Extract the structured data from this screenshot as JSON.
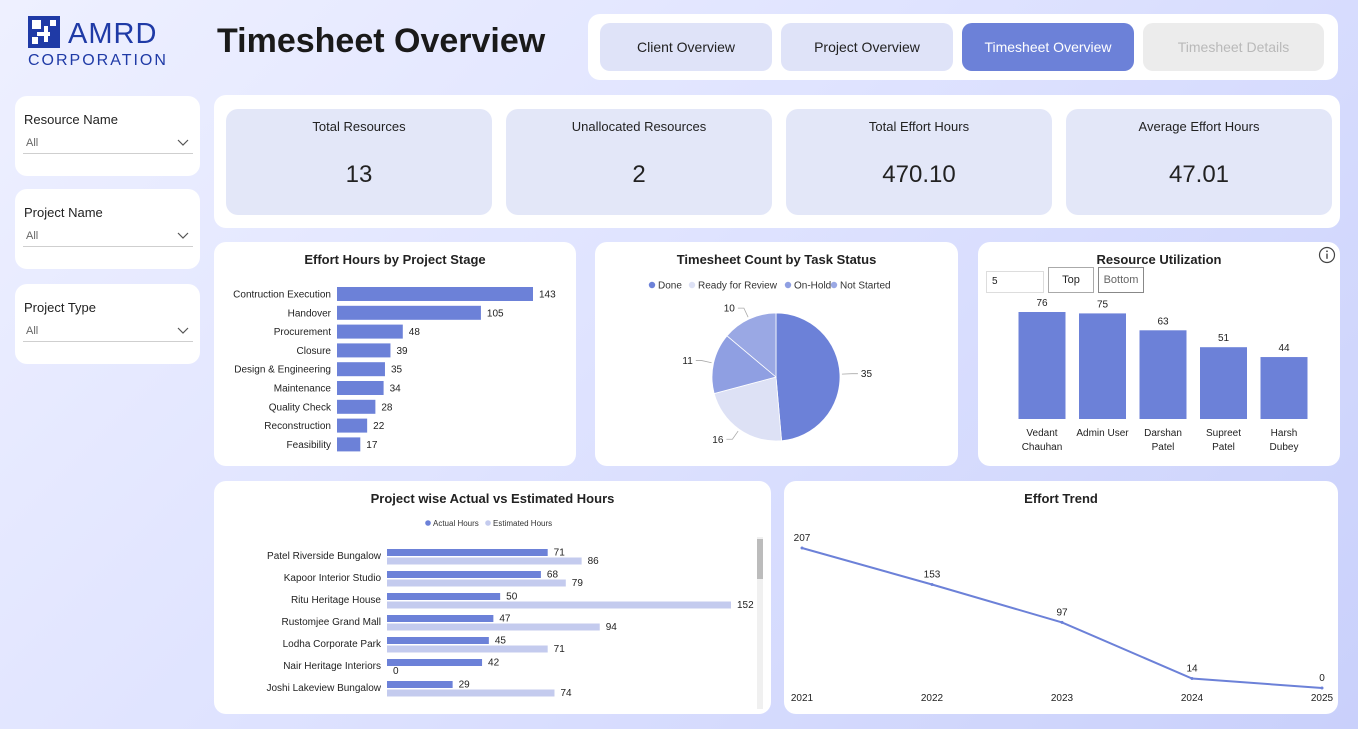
{
  "logo": {
    "name": "AMRD",
    "tagline": "CORPORATION"
  },
  "page_title": "Timesheet Overview",
  "nav": [
    {
      "label": "Client Overview",
      "state": "normal"
    },
    {
      "label": "Project Overview",
      "state": "normal"
    },
    {
      "label": "Timesheet Overview",
      "state": "active"
    },
    {
      "label": "Timesheet Details",
      "state": "disabled"
    }
  ],
  "filters": [
    {
      "label": "Resource Name",
      "value": "All"
    },
    {
      "label": "Project Name",
      "value": "All"
    },
    {
      "label": "Project Type",
      "value": "All"
    }
  ],
  "kpis": [
    {
      "label": "Total Resources",
      "value": "13"
    },
    {
      "label": "Unallocated Resources",
      "value": "2"
    },
    {
      "label": "Total Effort Hours",
      "value": "470.10"
    },
    {
      "label": "Average Effort Hours",
      "value": "47.01"
    }
  ],
  "colors": {
    "primary": "#6c81d8",
    "light": "#c4cbee",
    "mid": "#8f9fe2",
    "pale": "#dde1f5"
  },
  "chart_data": [
    {
      "id": "stage",
      "type": "bar",
      "orientation": "horizontal",
      "title": "Effort Hours by Project Stage",
      "categories": [
        "Contruction Execution",
        "Handover",
        "Procurement",
        "Closure",
        "Design & Engineering",
        "Maintenance",
        "Quality Check",
        "Reconstruction",
        "Feasibility"
      ],
      "values": [
        143,
        105,
        48,
        39,
        35,
        34,
        28,
        22,
        17
      ]
    },
    {
      "id": "status",
      "type": "pie",
      "title": "Timesheet Count by Task Status",
      "legend": [
        "Done",
        "Ready for Review",
        "On-Hold",
        "Not Started"
      ],
      "values": [
        35,
        16,
        11,
        10
      ],
      "legend_position": "top"
    },
    {
      "id": "utilization",
      "type": "bar",
      "orientation": "vertical",
      "title": "Resource Utilization",
      "topn_value": "5",
      "buttons": [
        "Top",
        "Bottom"
      ],
      "categories": [
        [
          "Vedant",
          "Chauhan"
        ],
        [
          "Admin User"
        ],
        [
          "Darshan",
          "Patel"
        ],
        [
          "Supreet",
          "Patel"
        ],
        [
          "Harsh",
          "Dubey"
        ]
      ],
      "values": [
        76,
        75,
        63,
        51,
        44
      ]
    },
    {
      "id": "projects",
      "type": "bar",
      "orientation": "horizontal",
      "title": "Project wise Actual vs Estimated Hours",
      "categories": [
        "Patel Riverside Bungalow",
        "Kapoor Interior Studio",
        "Ritu Heritage House",
        "Rustomjee Grand Mall",
        "Lodha Corporate Park",
        "Nair Heritage Interiors",
        "Joshi Lakeview Bungalow"
      ],
      "series": [
        {
          "name": "Actual Hours",
          "values": [
            71,
            68,
            50,
            47,
            45,
            42,
            29
          ]
        },
        {
          "name": "Estimated Hours",
          "values": [
            86,
            79,
            152,
            94,
            71,
            0,
            74
          ]
        }
      ],
      "legend_position": "top"
    },
    {
      "id": "trend",
      "type": "line",
      "title": "Effort Trend",
      "x": [
        "2021",
        "2022",
        "2023",
        "2024",
        "2025"
      ],
      "values": [
        207,
        153,
        97,
        14,
        0
      ]
    }
  ]
}
